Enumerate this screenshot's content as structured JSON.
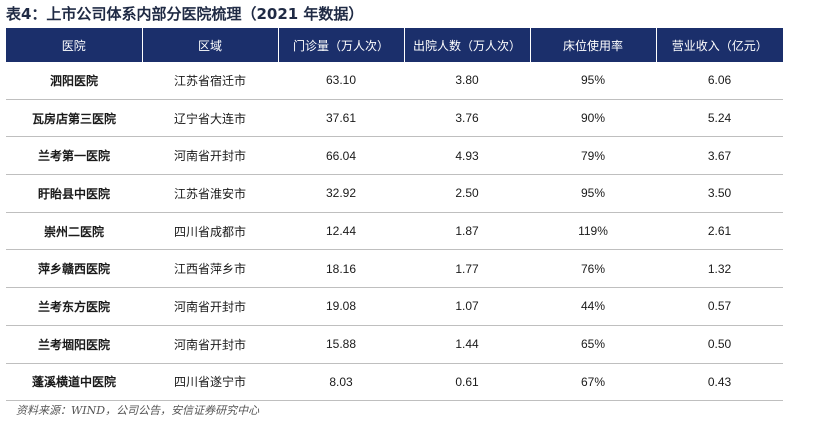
{
  "title": "表4：上市公司体系内部分医院梳理（2021 年数据）",
  "table": {
    "headers": [
      "医院",
      "区域",
      "门诊量（万人次）",
      "出院人数（万人次）",
      "床位使用率",
      "营业收入（亿元）"
    ],
    "rows": [
      {
        "hospital": "泗阳医院",
        "region": "江苏省宿迁市",
        "outpatient": "63.10",
        "discharged": "3.80",
        "bed_rate": "95%",
        "revenue": "6.06"
      },
      {
        "hospital": "瓦房店第三医院",
        "region": "辽宁省大连市",
        "outpatient": "37.61",
        "discharged": "3.76",
        "bed_rate": "90%",
        "revenue": "5.24"
      },
      {
        "hospital": "兰考第一医院",
        "region": "河南省开封市",
        "outpatient": "66.04",
        "discharged": "4.93",
        "bed_rate": "79%",
        "revenue": "3.67"
      },
      {
        "hospital": "盱眙县中医院",
        "region": "江苏省淮安市",
        "outpatient": "32.92",
        "discharged": "2.50",
        "bed_rate": "95%",
        "revenue": "3.50"
      },
      {
        "hospital": "崇州二医院",
        "region": "四川省成都市",
        "outpatient": "12.44",
        "discharged": "1.87",
        "bed_rate": "119%",
        "revenue": "2.61"
      },
      {
        "hospital": "萍乡赣西医院",
        "region": "江西省萍乡市",
        "outpatient": "18.16",
        "discharged": "1.77",
        "bed_rate": "76%",
        "revenue": "1.32"
      },
      {
        "hospital": "兰考东方医院",
        "region": "河南省开封市",
        "outpatient": "19.08",
        "discharged": "1.07",
        "bed_rate": "44%",
        "revenue": "0.57"
      },
      {
        "hospital": "兰考堌阳医院",
        "region": "河南省开封市",
        "outpatient": "15.88",
        "discharged": "1.44",
        "bed_rate": "65%",
        "revenue": "0.50"
      },
      {
        "hospital": "蓬溪横道中医院",
        "region": "四川省遂宁市",
        "outpatient": "8.03",
        "discharged": "0.61",
        "bed_rate": "67%",
        "revenue": "0.43"
      }
    ]
  },
  "source": "资料来源：WIND，公司公告，安信证券研究中心",
  "colors": {
    "header_bg": "#1b2f6b",
    "header_text": "#ffffff",
    "row_border": "#bfbfbf"
  }
}
